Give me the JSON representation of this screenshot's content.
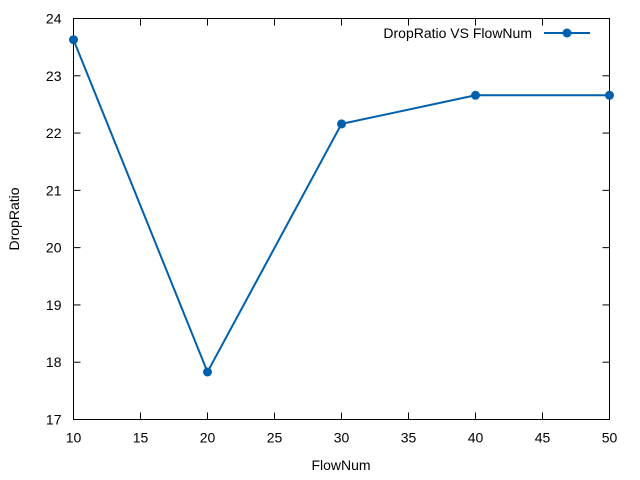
{
  "chart_data": {
    "type": "line",
    "xlabel": "FlowNum",
    "ylabel": "DropRatio",
    "xlim": [
      10,
      50
    ],
    "ylim": [
      17,
      24
    ],
    "xticks": [
      10,
      15,
      20,
      25,
      30,
      35,
      40,
      45,
      50
    ],
    "yticks": [
      17,
      18,
      19,
      20,
      21,
      22,
      23,
      24
    ],
    "grid": false,
    "legend_position": "top-right",
    "series": [
      {
        "name": "DropRatio VS FlowNum",
        "color": "#0060ad",
        "marker": "circle",
        "x": [
          10,
          20,
          30,
          40,
          50
        ],
        "y": [
          23.63,
          17.83,
          22.16,
          22.66,
          22.66
        ]
      }
    ]
  }
}
